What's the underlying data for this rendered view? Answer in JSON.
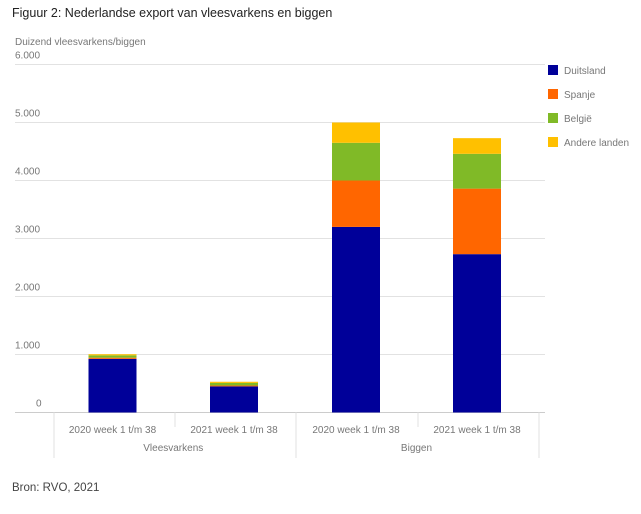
{
  "title": "Figuur 2: Nederlandse export van vleesvarkens en biggen",
  "source": "Bron: RVO, 2021",
  "chart_data": {
    "type": "bar",
    "stacked": true,
    "ylabel": "Duizend vleesvarkens/biggen",
    "ylim": [
      0,
      6000
    ],
    "yticks": [
      0,
      1000,
      2000,
      3000,
      4000,
      5000,
      6000
    ],
    "ytick_labels": [
      "0",
      "1.000",
      "2.000",
      "3.000",
      "4.000",
      "5.000",
      "6.000"
    ],
    "grid": true,
    "legend_position": "right",
    "categories": [
      "2020 week 1 t/m 38",
      "2021 week 1 t/m 38",
      "2020 week 1 t/m 38",
      "2021 week 1 t/m 38"
    ],
    "groups": [
      {
        "label": "Vleesvarkens",
        "categories": [
          0,
          1
        ]
      },
      {
        "label": "Biggen",
        "categories": [
          2,
          3
        ]
      }
    ],
    "series": [
      {
        "name": "Duitsland",
        "color": "#000099",
        "values": [
          925,
          450,
          3200,
          2730
        ]
      },
      {
        "name": "Spanje",
        "color": "#FF6600",
        "values": [
          20,
          15,
          800,
          1130
        ]
      },
      {
        "name": "België",
        "color": "#80BA27",
        "values": [
          40,
          45,
          650,
          600
        ]
      },
      {
        "name": "Andere landen",
        "color": "#FFC000",
        "values": [
          20,
          20,
          350,
          270
        ]
      }
    ]
  }
}
